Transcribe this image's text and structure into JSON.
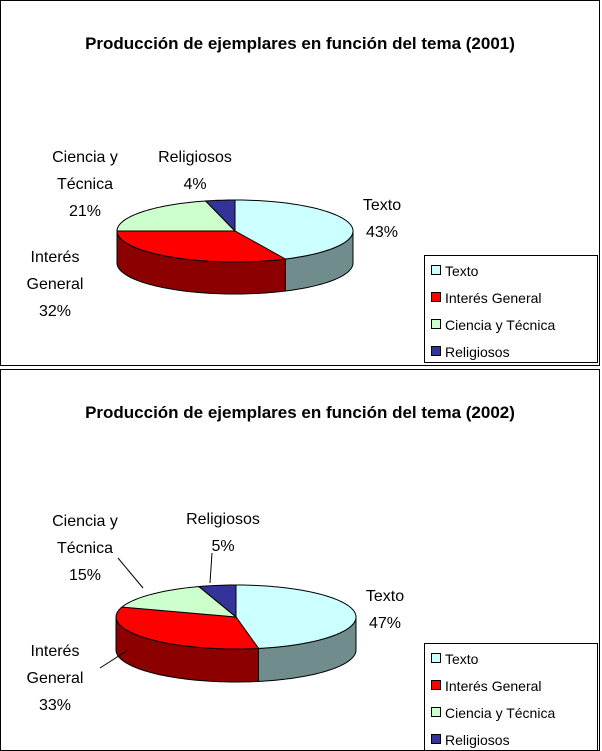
{
  "chart_data": [
    {
      "type": "pie",
      "title": "Producción de ejemplares en función del tema (2001)",
      "categories": [
        "Texto",
        "Interés General",
        "Ciencia y Técnica",
        "Religiosos"
      ],
      "values": [
        43,
        32,
        21,
        4
      ],
      "value_labels": [
        "43%",
        "32%",
        "21%",
        "4%"
      ],
      "colors": [
        "#ccffff",
        "#ff0000",
        "#ccffcc",
        "#333399"
      ],
      "legend": "lower right"
    },
    {
      "type": "pie",
      "title": "Producción de ejemplares en función del tema (2002)",
      "categories": [
        "Texto",
        "Interés General",
        "Ciencia y Técnica",
        "Religiosos"
      ],
      "values": [
        47,
        33,
        15,
        5
      ],
      "value_labels": [
        "47%",
        "33%",
        "15%",
        "5%"
      ],
      "colors": [
        "#ccffff",
        "#ff0000",
        "#ccffcc",
        "#333399"
      ],
      "legend": "lower right"
    }
  ]
}
